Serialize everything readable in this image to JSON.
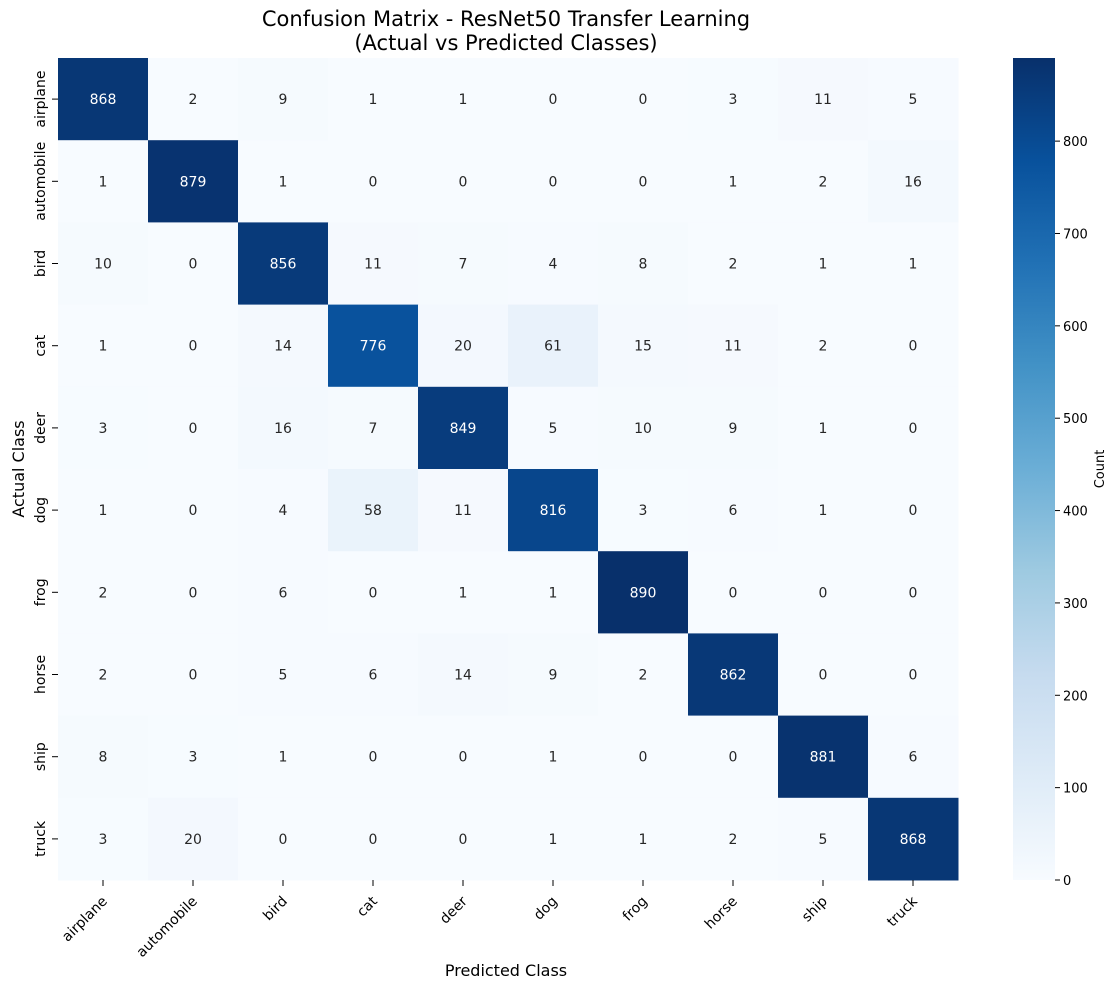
{
  "chart_data": {
    "type": "heatmap",
    "title": "Confusion Matrix - ResNet50 Transfer Learning\n(Actual vs Predicted Classes)",
    "title_lines": [
      "Confusion Matrix - ResNet50 Transfer Learning",
      "(Actual vs Predicted Classes)"
    ],
    "xlabel": "Predicted Class",
    "ylabel": "Actual Class",
    "x_categories": [
      "airplane",
      "automobile",
      "bird",
      "cat",
      "deer",
      "dog",
      "frog",
      "horse",
      "ship",
      "truck"
    ],
    "y_categories": [
      "airplane",
      "automobile",
      "bird",
      "cat",
      "deer",
      "dog",
      "frog",
      "horse",
      "ship",
      "truck"
    ],
    "values": [
      [
        868,
        2,
        9,
        1,
        1,
        0,
        0,
        3,
        11,
        5
      ],
      [
        1,
        879,
        1,
        0,
        0,
        0,
        0,
        1,
        2,
        16
      ],
      [
        10,
        0,
        856,
        11,
        7,
        4,
        8,
        2,
        1,
        1
      ],
      [
        1,
        0,
        14,
        776,
        20,
        61,
        15,
        11,
        2,
        0
      ],
      [
        3,
        0,
        16,
        7,
        849,
        5,
        10,
        9,
        1,
        0
      ],
      [
        1,
        0,
        4,
        58,
        11,
        816,
        3,
        6,
        1,
        0
      ],
      [
        2,
        0,
        6,
        0,
        1,
        1,
        890,
        0,
        0,
        0
      ],
      [
        2,
        0,
        5,
        6,
        14,
        9,
        2,
        862,
        0,
        0
      ],
      [
        8,
        3,
        1,
        0,
        0,
        1,
        0,
        0,
        881,
        6
      ],
      [
        3,
        20,
        0,
        0,
        0,
        1,
        1,
        2,
        5,
        868
      ]
    ],
    "colormap": "Blues",
    "vmin": 0,
    "vmax": 890,
    "colorbar": {
      "label": "Count",
      "ticks": [
        0,
        100,
        200,
        300,
        400,
        500,
        600,
        700,
        800
      ]
    },
    "annotations": true,
    "grid": false
  },
  "colors": {
    "scale_low": "#f7fbff",
    "scale_high": "#08306b",
    "text_dark": "#262626",
    "text_light": "#ffffff"
  }
}
